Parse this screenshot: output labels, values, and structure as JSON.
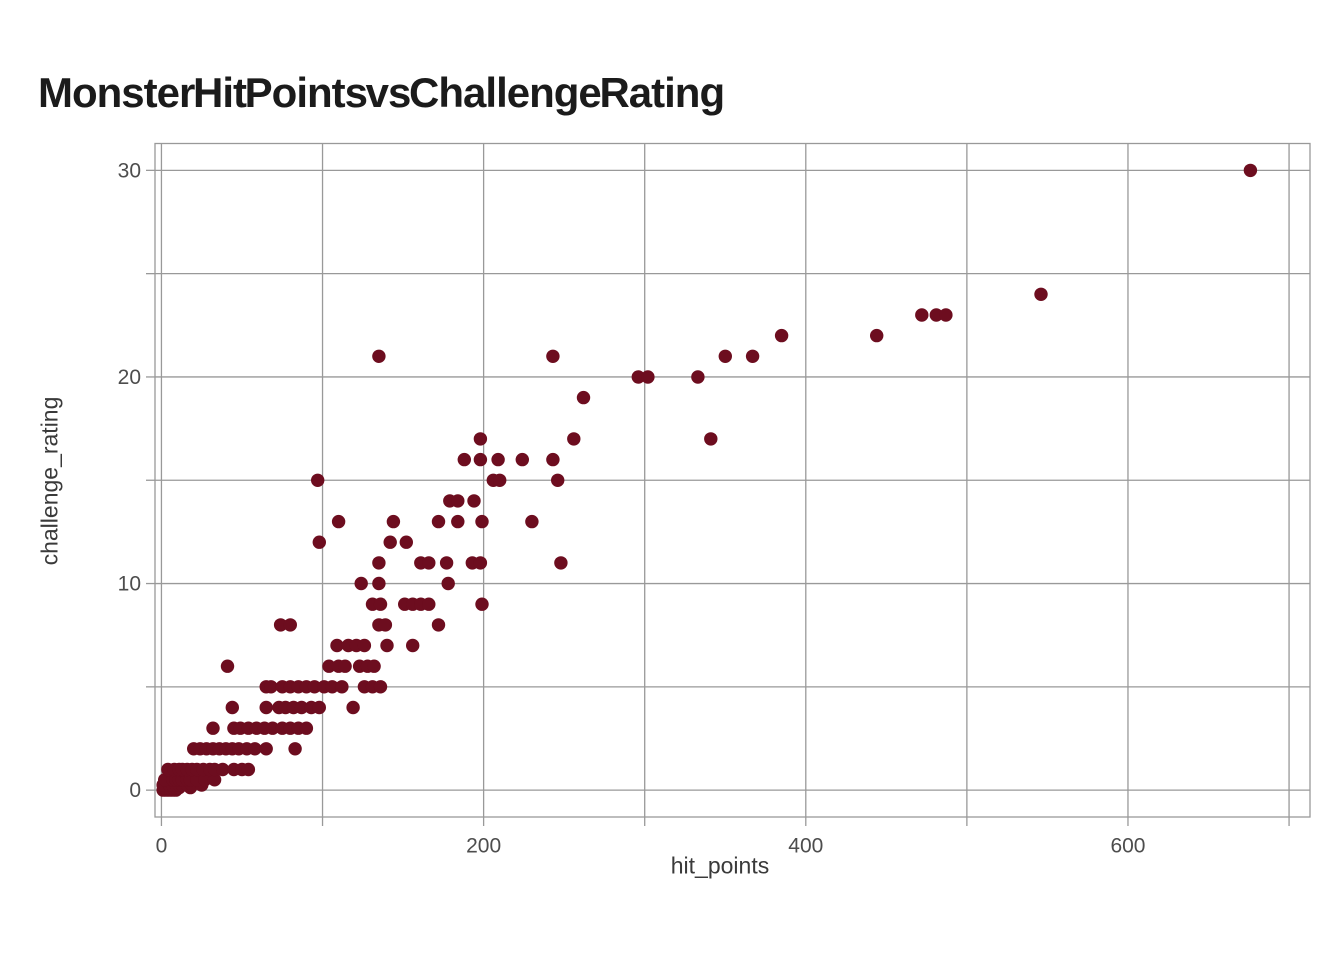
{
  "page": {
    "background_color": "#ffffff"
  },
  "chart_data": {
    "type": "scatter",
    "title": "Monster Hit Points vs Challenge Rating",
    "xlabel": "hit_points",
    "ylabel": "challenge_rating",
    "xlim": [
      -4,
      713
    ],
    "ylim": [
      -1.3,
      31.3
    ],
    "x_major_ticks": [
      0,
      200,
      400,
      600
    ],
    "x_gridlines": [
      0,
      100,
      200,
      300,
      400,
      500,
      600,
      700
    ],
    "y_major_ticks": [
      0,
      10,
      20,
      30
    ],
    "y_gridlines": [
      0,
      5,
      10,
      15,
      20,
      25,
      30
    ],
    "grid": true,
    "legend": "none",
    "panel_border": true,
    "marker": {
      "shape": "circle",
      "color": "#6d0d1f",
      "radius_px": 6.7
    },
    "gridline_color": "#999999",
    "tick_label_color": "#4d4d4d",
    "axis_label_color": "#3a3a3a",
    "title_color": "#1b1b1b",
    "points_by_challenge_rating": [
      {
        "cr": 0,
        "hp": [
          1,
          3,
          5,
          7,
          9
        ]
      },
      {
        "cr": 0.125,
        "hp": [
          2,
          5,
          7,
          9,
          11,
          18
        ]
      },
      {
        "cr": 0.25,
        "hp": [
          1,
          5,
          7,
          9,
          11,
          13,
          16,
          19,
          25
        ]
      },
      {
        "cr": 0.5,
        "hp": [
          2,
          7,
          9,
          11,
          13,
          16,
          18,
          22,
          27,
          33
        ]
      },
      {
        "cr": 1,
        "hp": [
          4,
          8,
          11,
          13,
          16,
          19,
          22,
          26,
          30,
          33,
          38,
          45,
          50,
          54
        ]
      },
      {
        "cr": 2,
        "hp": [
          20,
          24,
          28,
          32,
          36,
          40,
          44,
          48,
          53,
          58,
          65,
          83
        ]
      },
      {
        "cr": 3,
        "hp": [
          32,
          45,
          49,
          54,
          59,
          64,
          69,
          75,
          80,
          85,
          90
        ]
      },
      {
        "cr": 4,
        "hp": [
          44,
          65,
          73,
          77,
          82,
          87,
          93,
          98,
          119
        ]
      },
      {
        "cr": 5,
        "hp": [
          65,
          68,
          75,
          80,
          85,
          90,
          95,
          101,
          106,
          112,
          126,
          131,
          136
        ]
      },
      {
        "cr": 6,
        "hp": [
          41,
          104,
          110,
          114,
          123,
          128,
          132
        ]
      },
      {
        "cr": 7,
        "hp": [
          109,
          116,
          121,
          126,
          140,
          156
        ]
      },
      {
        "cr": 8,
        "hp": [
          74,
          80,
          135,
          139,
          172
        ]
      },
      {
        "cr": 9,
        "hp": [
          131,
          136,
          151,
          156,
          161,
          166,
          199
        ]
      },
      {
        "cr": 10,
        "hp": [
          124,
          135,
          178
        ]
      },
      {
        "cr": 11,
        "hp": [
          135,
          161,
          166,
          177,
          193,
          198,
          248
        ]
      },
      {
        "cr": 12,
        "hp": [
          98,
          142,
          152
        ]
      },
      {
        "cr": 13,
        "hp": [
          110,
          144,
          172,
          184,
          199,
          230
        ]
      },
      {
        "cr": 14,
        "hp": [
          179,
          184,
          194
        ]
      },
      {
        "cr": 15,
        "hp": [
          97,
          206,
          210,
          246
        ]
      },
      {
        "cr": 16,
        "hp": [
          188,
          198,
          209,
          224,
          243
        ]
      },
      {
        "cr": 17,
        "hp": [
          198,
          256,
          341
        ]
      },
      {
        "cr": 19,
        "hp": [
          262
        ]
      },
      {
        "cr": 20,
        "hp": [
          296,
          302,
          333
        ]
      },
      {
        "cr": 21,
        "hp": [
          135,
          243,
          350,
          367
        ]
      },
      {
        "cr": 22,
        "hp": [
          385,
          444
        ]
      },
      {
        "cr": 23,
        "hp": [
          472,
          481,
          487
        ]
      },
      {
        "cr": 24,
        "hp": [
          546
        ]
      },
      {
        "cr": 30,
        "hp": [
          676
        ]
      }
    ]
  }
}
